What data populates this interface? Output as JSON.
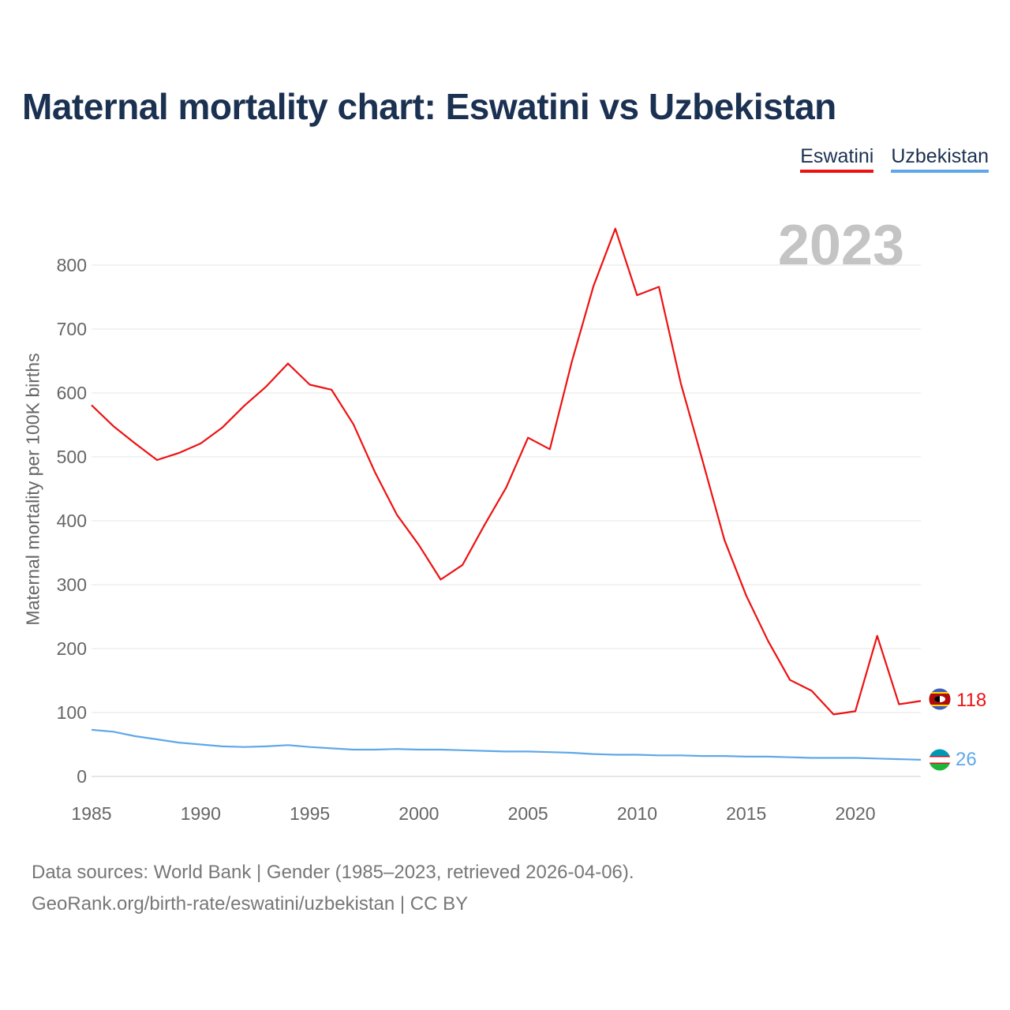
{
  "title": "Maternal mortality chart: Eswatini vs Uzbekistan",
  "legend": [
    {
      "name": "Eswatini",
      "color": "#ee1111"
    },
    {
      "name": "Uzbekistan",
      "color": "#5fa8e8"
    }
  ],
  "year_watermark": "2023",
  "source": {
    "line1": "Data sources: World Bank | Gender (1985–2023, retrieved 2026-04-06).",
    "line2": "GeoRank.org/birth-rate/eswatini/uzbekistan | CC BY"
  },
  "chart_data": {
    "type": "line",
    "title": "Maternal mortality chart: Eswatini vs Uzbekistan",
    "xlabel": "",
    "ylabel": "Maternal mortality per 100K births",
    "xlim": [
      1985,
      2023
    ],
    "ylim": [
      0,
      850
    ],
    "yticks": [
      0,
      100,
      200,
      300,
      400,
      500,
      600,
      700,
      800
    ],
    "xticks": [
      1985,
      1990,
      1995,
      2000,
      2005,
      2010,
      2015,
      2020
    ],
    "grid": true,
    "legend_position": "top-right",
    "x": [
      1985,
      1986,
      1987,
      1988,
      1989,
      1990,
      1991,
      1992,
      1993,
      1994,
      1995,
      1996,
      1997,
      1998,
      1999,
      2000,
      2001,
      2002,
      2003,
      2004,
      2005,
      2006,
      2007,
      2008,
      2009,
      2010,
      2011,
      2012,
      2013,
      2014,
      2015,
      2016,
      2017,
      2018,
      2019,
      2020,
      2021,
      2022,
      2023
    ],
    "series": [
      {
        "name": "Eswatini",
        "color": "#ee1111",
        "end_label": "118",
        "values": [
          581,
          548,
          521,
          495,
          506,
          521,
          546,
          580,
          610,
          646,
          613,
          605,
          551,
          475,
          409,
          362,
          308,
          331,
          393,
          452,
          530,
          512,
          648,
          767,
          857,
          753,
          766,
          615,
          494,
          370,
          283,
          212,
          151,
          134,
          97,
          102,
          220,
          113,
          118
        ]
      },
      {
        "name": "Uzbekistan",
        "color": "#5fa8e8",
        "end_label": "26",
        "values": [
          73,
          70,
          63,
          58,
          53,
          50,
          47,
          46,
          47,
          49,
          46,
          44,
          42,
          42,
          43,
          42,
          42,
          41,
          40,
          39,
          39,
          38,
          37,
          35,
          34,
          34,
          33,
          33,
          32,
          32,
          31,
          31,
          30,
          29,
          29,
          29,
          28,
          27,
          26
        ]
      }
    ]
  }
}
